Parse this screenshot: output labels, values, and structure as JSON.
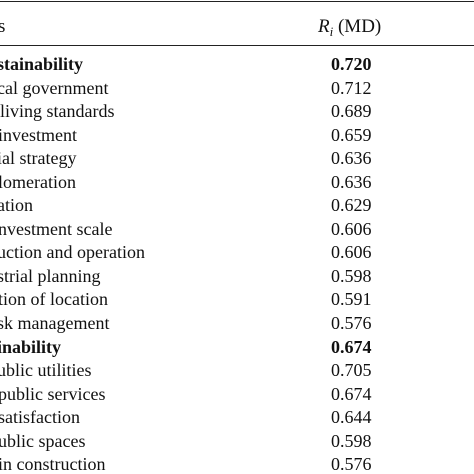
{
  "header": {
    "left_text": "s",
    "right_symbol": "R",
    "right_subscript": "i",
    "right_unit": " (MD)"
  },
  "rows": [
    {
      "label": "stainability",
      "value": "0.720",
      "bold": true
    },
    {
      "label": "cal government",
      "value": "0.712",
      "bold": false
    },
    {
      "label": "living standards",
      "value": "0.689",
      "bold": false
    },
    {
      "label": "investment",
      "value": "0.659",
      "bold": false
    },
    {
      "label": "ial strategy",
      "value": "0.636",
      "bold": false
    },
    {
      "label": "lomeration",
      "value": "0.636",
      "bold": false
    },
    {
      "label": "ation",
      "value": "0.629",
      "bold": false
    },
    {
      "label": "nvestment scale",
      "value": "0.606",
      "bold": false
    },
    {
      "label": "uction and operation",
      "value": "0.606",
      "bold": false
    },
    {
      "label": "strial planning",
      "value": "0.598",
      "bold": false
    },
    {
      "label": "tion of location",
      "value": "0.591",
      "bold": false
    },
    {
      "label": "sk management",
      "value": "0.576",
      "bold": false
    },
    {
      "label": "inability",
      "value": "0.674",
      "bold": true
    },
    {
      "label": "ublic utilities",
      "value": "0.705",
      "bold": false
    },
    {
      "label": "public services",
      "value": "0.674",
      "bold": false
    },
    {
      "label": "satisfaction",
      "value": "0.644",
      "bold": false
    },
    {
      "label": "ublic spaces",
      "value": "0.598",
      "bold": false
    },
    {
      "label": "in construction",
      "value": "0.576",
      "bold": false
    }
  ]
}
